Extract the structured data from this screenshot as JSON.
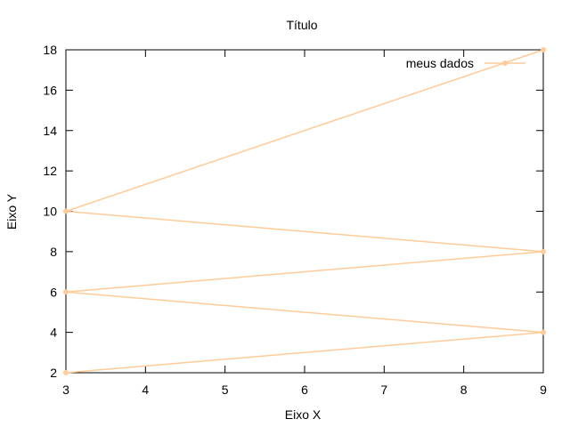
{
  "chart_data": {
    "type": "line",
    "title": "Título",
    "xlabel": "Eixo X",
    "ylabel": "Eixo Y",
    "xlim": [
      3,
      9
    ],
    "ylim": [
      2,
      18
    ],
    "xticks": [
      3,
      4,
      5,
      6,
      7,
      8,
      9
    ],
    "yticks": [
      2,
      4,
      6,
      8,
      10,
      12,
      14,
      16,
      18
    ],
    "grid": false,
    "legend_position": "top-right",
    "series": [
      {
        "name": "meus dados",
        "color": "#ffcc99",
        "marker": "circle",
        "x": [
          3,
          9,
          3,
          9,
          3,
          9
        ],
        "y": [
          2,
          4,
          6,
          8,
          10,
          18
        ]
      }
    ]
  }
}
